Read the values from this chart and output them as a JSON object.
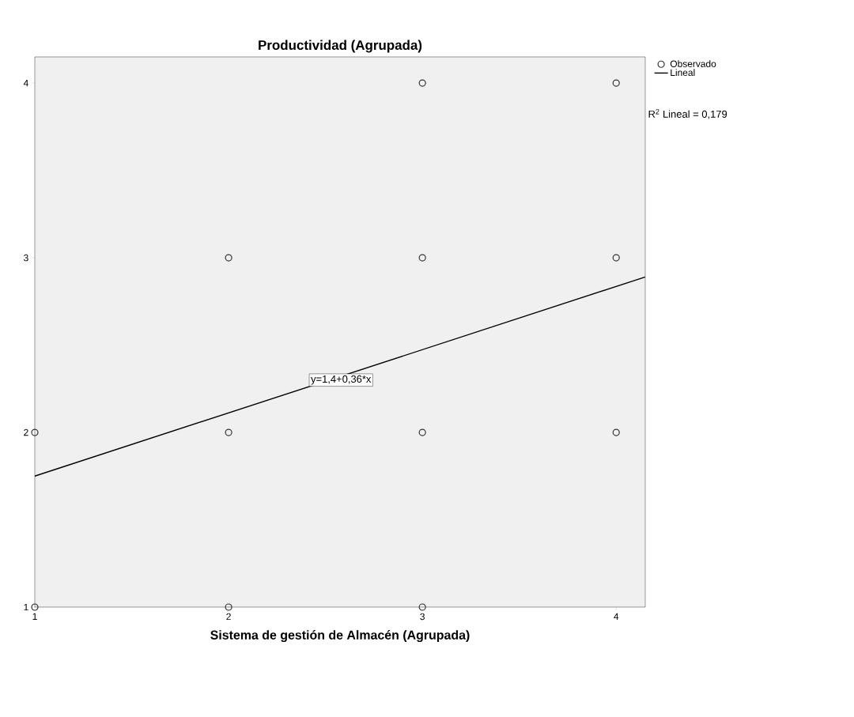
{
  "chart_data": {
    "type": "scatter",
    "title": "Productividad (Agrupada)",
    "xlabel": "Sistema de gestión de Almacén (Agrupada)",
    "xlim": [
      1,
      4.15
    ],
    "ylim": [
      1,
      4.15
    ],
    "xticks": [
      1,
      2,
      3,
      4
    ],
    "yticks": [
      1,
      2,
      3,
      4
    ],
    "series": [
      {
        "name": "Observado",
        "color": "#333333",
        "marker": "circle",
        "x": [
          1,
          1,
          2,
          2,
          2,
          3,
          3,
          3,
          3,
          4,
          4,
          4
        ],
        "values": [
          2,
          1,
          3,
          2,
          1,
          4,
          3,
          2,
          1,
          4,
          3,
          2
        ]
      },
      {
        "name": "Lineal",
        "type": "line",
        "color": "#000000",
        "marker": "none",
        "line_style": "solid",
        "x": [
          1,
          4.15
        ],
        "values": [
          1.75,
          2.89
        ]
      }
    ],
    "annotations": [
      "R$^{2}$ Lineal = 0,179",
      {
        "text": "y=1,4+0,36*x",
        "x": 2.58,
        "y": 2.3
      }
    ],
    "legend": "top right",
    "grid": false
  }
}
